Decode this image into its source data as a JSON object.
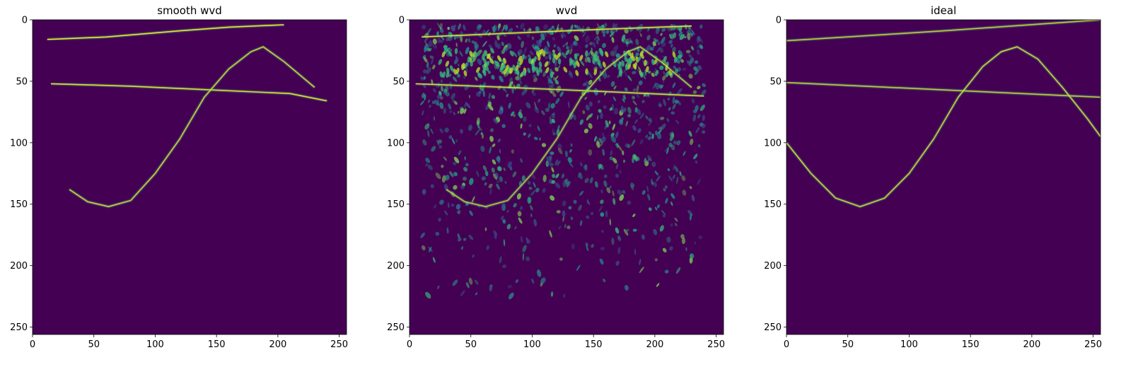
{
  "chart_data": [
    {
      "type": "heatmap",
      "title": "smooth wvd",
      "xlabel": "",
      "ylabel": "",
      "xlim": [
        0,
        256
      ],
      "ylim": [
        256,
        0
      ],
      "xticks": [
        0,
        50,
        100,
        150,
        200,
        250
      ],
      "yticks": [
        0,
        50,
        100,
        150,
        200,
        250
      ],
      "background_color": "#440154",
      "line_color": "#fde725",
      "components": [
        {
          "name": "upper-chirp",
          "points": [
            [
              12,
              16
            ],
            [
              60,
              14
            ],
            [
              120,
              9
            ],
            [
              160,
              6
            ],
            [
              205,
              4
            ]
          ],
          "intensity": 0.95
        },
        {
          "name": "lower-chirp",
          "points": [
            [
              15,
              52
            ],
            [
              80,
              54
            ],
            [
              145,
              57
            ],
            [
              210,
              60
            ],
            [
              240,
              66
            ]
          ],
          "intensity": 0.9
        },
        {
          "name": "sinusoid",
          "points": [
            [
              30,
              138
            ],
            [
              45,
              148
            ],
            [
              62,
              152
            ],
            [
              80,
              147
            ],
            [
              100,
              125
            ],
            [
              120,
              97
            ],
            [
              140,
              63
            ],
            [
              160,
              40
            ],
            [
              178,
              26
            ],
            [
              188,
              22
            ],
            [
              205,
              34
            ],
            [
              230,
              55
            ]
          ],
          "intensity": 0.8
        }
      ]
    },
    {
      "type": "heatmap",
      "title": "wvd",
      "xlabel": "",
      "ylabel": "",
      "xlim": [
        0,
        256
      ],
      "ylim": [
        256,
        0
      ],
      "xticks": [
        0,
        50,
        100,
        150,
        200,
        250
      ],
      "yticks": [
        0,
        50,
        100,
        150,
        200,
        250
      ],
      "background_color": "#440154",
      "line_color": "#fde725",
      "components": [
        {
          "name": "upper-chirp",
          "points": [
            [
              10,
              14
            ],
            [
              80,
              11
            ],
            [
              150,
              8
            ],
            [
              230,
              5
            ]
          ],
          "intensity": 0.9
        },
        {
          "name": "lower-chirp",
          "points": [
            [
              5,
              52
            ],
            [
              80,
              55
            ],
            [
              150,
              58
            ],
            [
              240,
              62
            ]
          ],
          "intensity": 0.85
        },
        {
          "name": "sinusoid",
          "points": [
            [
              30,
              138
            ],
            [
              45,
              148
            ],
            [
              62,
              152
            ],
            [
              80,
              147
            ],
            [
              100,
              125
            ],
            [
              120,
              97
            ],
            [
              140,
              63
            ],
            [
              160,
              40
            ],
            [
              178,
              26
            ],
            [
              188,
              22
            ],
            [
              205,
              34
            ],
            [
              230,
              55
            ]
          ],
          "intensity": 0.7
        }
      ],
      "interference_region": {
        "x": [
          10,
          240
        ],
        "y": [
          5,
          225
        ]
      }
    },
    {
      "type": "heatmap",
      "title": "ideal",
      "xlabel": "",
      "ylabel": "",
      "xlim": [
        0,
        256
      ],
      "ylim": [
        256,
        0
      ],
      "xticks": [
        0,
        50,
        100,
        150,
        200,
        250
      ],
      "yticks": [
        0,
        50,
        100,
        150,
        200,
        250
      ],
      "background_color": "#440154",
      "line_color": "#fde725",
      "components": [
        {
          "name": "upper-chirp",
          "points": [
            [
              0,
              17
            ],
            [
              128,
              9
            ],
            [
              256,
              0
            ]
          ],
          "intensity": 0.75
        },
        {
          "name": "lower-chirp",
          "points": [
            [
              0,
              51
            ],
            [
              128,
              57
            ],
            [
              256,
              63
            ]
          ],
          "intensity": 0.75
        },
        {
          "name": "sinusoid",
          "points": [
            [
              0,
              100
            ],
            [
              20,
              125
            ],
            [
              40,
              145
            ],
            [
              60,
              152
            ],
            [
              80,
              145
            ],
            [
              100,
              125
            ],
            [
              120,
              97
            ],
            [
              140,
              63
            ],
            [
              160,
              38
            ],
            [
              175,
              26
            ],
            [
              188,
              22
            ],
            [
              205,
              32
            ],
            [
              225,
              55
            ],
            [
              245,
              80
            ],
            [
              256,
              95
            ]
          ],
          "intensity": 0.8
        }
      ]
    }
  ]
}
